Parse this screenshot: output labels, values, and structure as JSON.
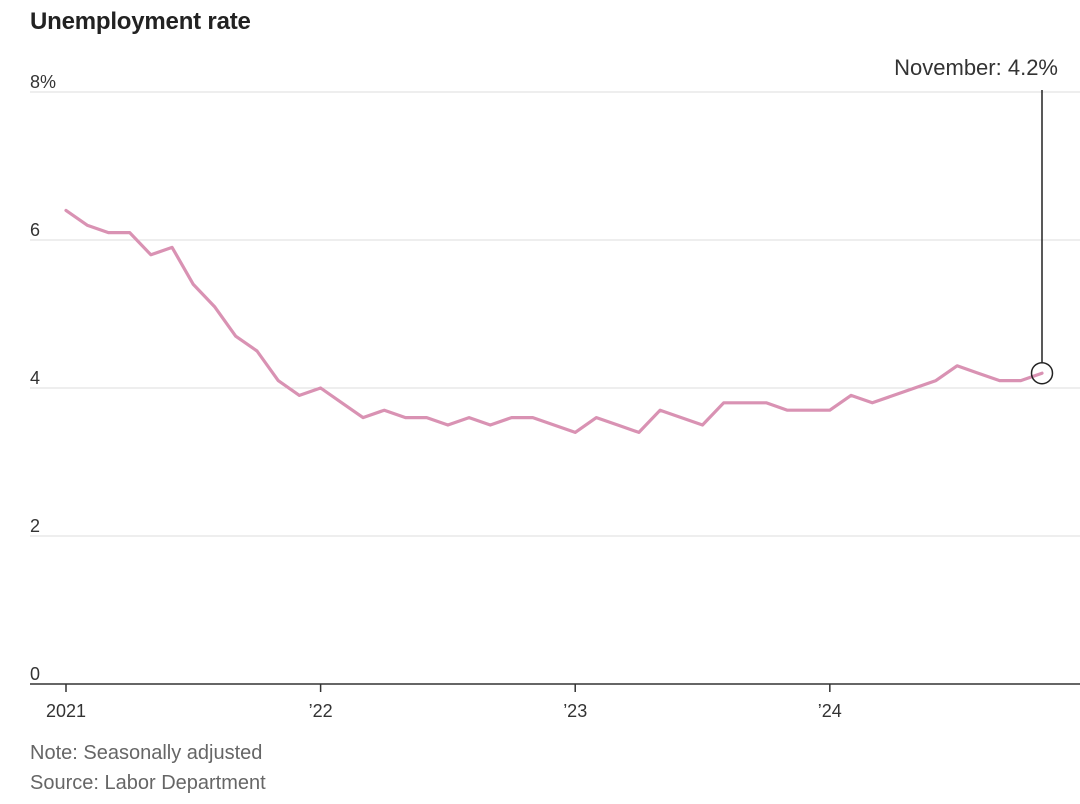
{
  "chart_data": {
    "type": "line",
    "title": "Unemployment rate",
    "note": "Note: Seasonally adjusted",
    "source": "Source: Labor Department",
    "ylim": [
      0,
      8
    ],
    "y_ticks": [
      {
        "value": 0,
        "label": "0"
      },
      {
        "value": 2,
        "label": "2"
      },
      {
        "value": 4,
        "label": "4"
      },
      {
        "value": 6,
        "label": "6"
      },
      {
        "value": 8,
        "label": "8%"
      }
    ],
    "x_ticks": [
      {
        "value": "2021-01",
        "label": "2021"
      },
      {
        "value": "2022-01",
        "label": "’22"
      },
      {
        "value": "2023-01",
        "label": "’23"
      },
      {
        "value": "2024-01",
        "label": "’24"
      }
    ],
    "grid": true,
    "series": [
      {
        "color": "#d992b3",
        "x": [
          "2021-01",
          "2021-02",
          "2021-03",
          "2021-04",
          "2021-05",
          "2021-06",
          "2021-07",
          "2021-08",
          "2021-09",
          "2021-10",
          "2021-11",
          "2021-12",
          "2022-01",
          "2022-02",
          "2022-03",
          "2022-04",
          "2022-05",
          "2022-06",
          "2022-07",
          "2022-08",
          "2022-09",
          "2022-10",
          "2022-11",
          "2022-12",
          "2023-01",
          "2023-02",
          "2023-03",
          "2023-04",
          "2023-05",
          "2023-06",
          "2023-07",
          "2023-08",
          "2023-09",
          "2023-10",
          "2023-11",
          "2023-12",
          "2024-01",
          "2024-02",
          "2024-03",
          "2024-04",
          "2024-05",
          "2024-06",
          "2024-07",
          "2024-08",
          "2024-09",
          "2024-10",
          "2024-11"
        ],
        "values": [
          6.4,
          6.2,
          6.1,
          6.1,
          5.8,
          5.9,
          5.4,
          5.1,
          4.7,
          4.5,
          4.1,
          3.9,
          4.0,
          3.8,
          3.6,
          3.7,
          3.6,
          3.6,
          3.5,
          3.6,
          3.5,
          3.6,
          3.6,
          3.5,
          3.4,
          3.6,
          3.5,
          3.4,
          3.7,
          3.6,
          3.5,
          3.8,
          3.8,
          3.8,
          3.7,
          3.7,
          3.7,
          3.9,
          3.8,
          3.9,
          4.0,
          4.1,
          4.3,
          4.2,
          4.1,
          4.1,
          4.2
        ]
      }
    ],
    "annotation": {
      "x": "2024-11",
      "value": 4.2,
      "label": "November: 4.2%"
    }
  }
}
